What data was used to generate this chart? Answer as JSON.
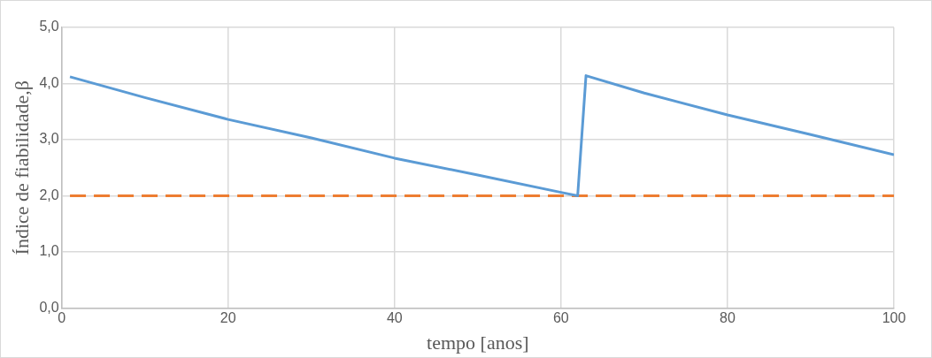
{
  "chart_data": {
    "type": "line",
    "xlabel": "tempo [anos]",
    "ylabel": "Índice de fiabilidade,β",
    "xlim": [
      0,
      100
    ],
    "xticks": [
      0,
      20,
      40,
      60,
      80,
      100
    ],
    "ylim": [
      0,
      5
    ],
    "yticks": [
      {
        "value": 0,
        "label": "0,0"
      },
      {
        "value": 1,
        "label": "1,0"
      },
      {
        "value": 2,
        "label": "2,0"
      },
      {
        "value": 3,
        "label": "3,0"
      },
      {
        "value": 4,
        "label": "4,0"
      },
      {
        "value": 5,
        "label": "5,0"
      }
    ],
    "grid": true,
    "legend": false,
    "marker": "none",
    "series": [
      {
        "color": "#5b9bd5",
        "line_style": "solid",
        "x": [
          1,
          10,
          20,
          30,
          40,
          50,
          60,
          62,
          63,
          70,
          80,
          90,
          100
        ],
        "values": [
          4.12,
          3.75,
          3.36,
          3.03,
          2.67,
          2.37,
          2.06,
          2.0,
          4.14,
          3.83,
          3.44,
          3.09,
          2.73
        ]
      },
      {
        "color": "#ed7d31",
        "line_style": "dashed",
        "x": [
          1,
          100
        ],
        "values": [
          2.0,
          2.0
        ]
      }
    ]
  }
}
